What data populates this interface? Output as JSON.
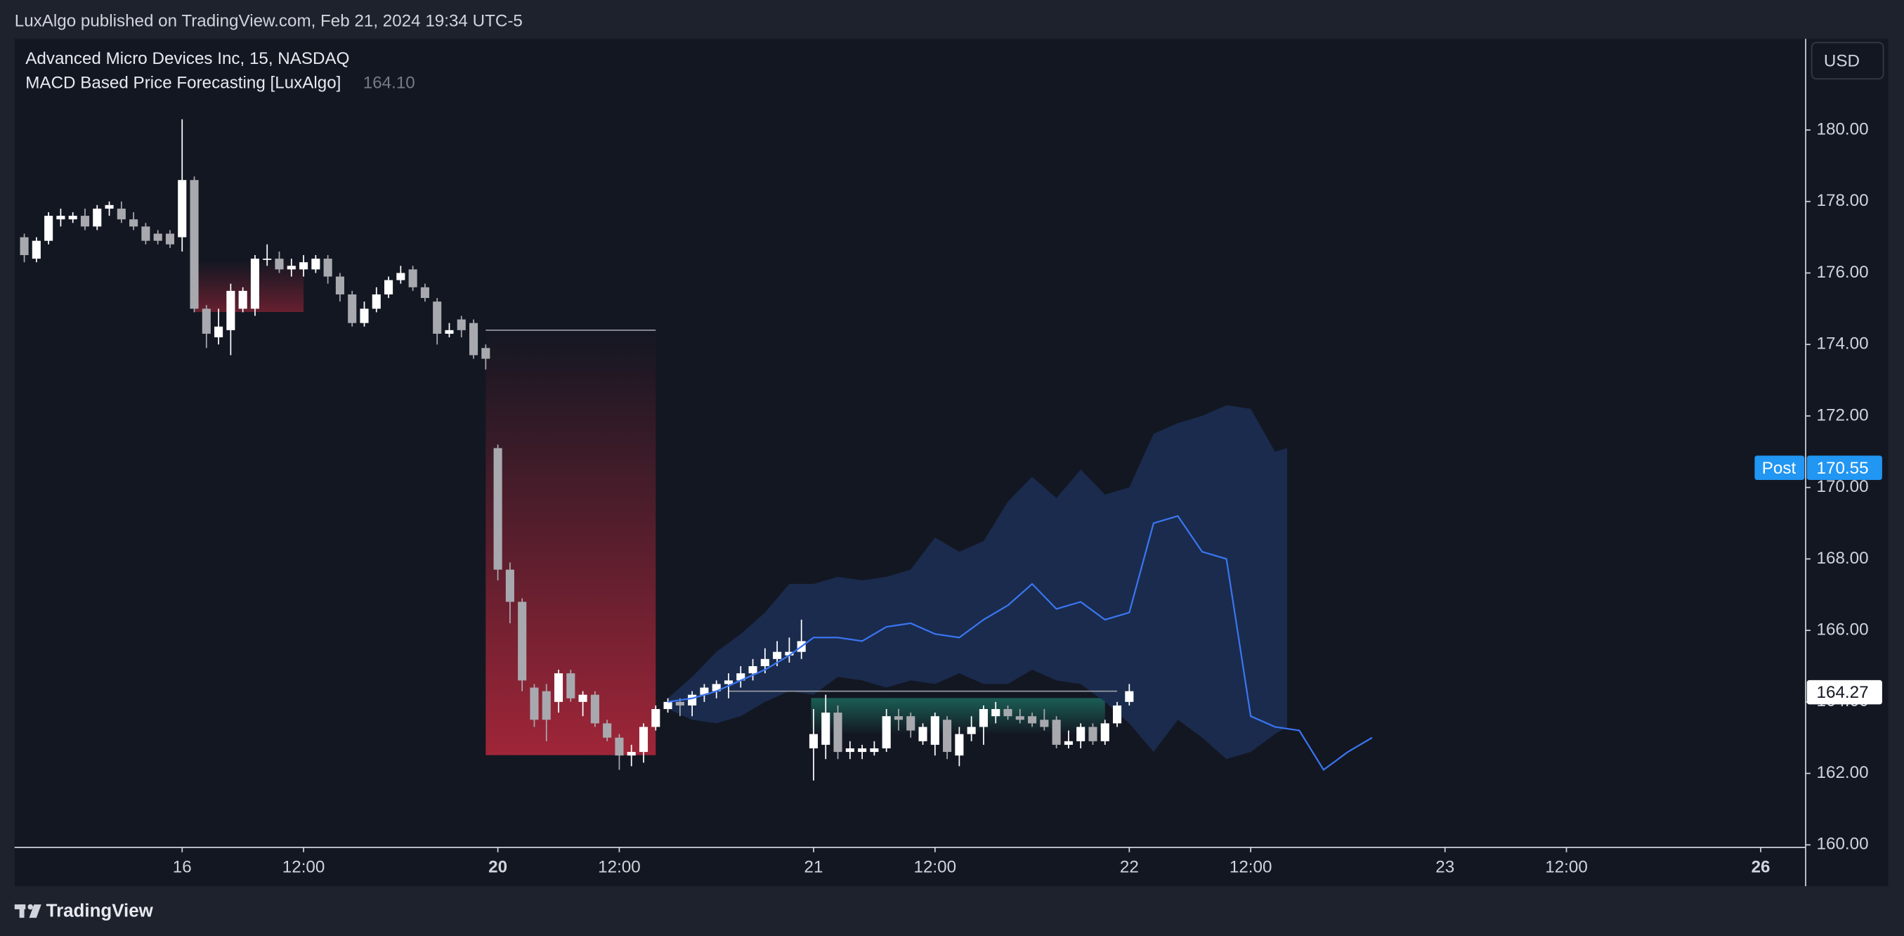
{
  "header": {
    "published": "LuxAlgo published on TradingView.com, Feb 21, 2024 19:34 UTC-5",
    "brand": "TradingView"
  },
  "chart_data": {
    "type": "candlestick",
    "title": "Advanced Micro Devices Inc, 15, NASDAQ",
    "indicator": "MACD Based Price Forecasting [LuxAlgo]",
    "indicator_value": "164.10",
    "currency": "USD",
    "open": [
      177.0,
      176.4,
      176.9,
      177.5,
      177.5,
      177.6,
      177.3,
      177.8,
      177.8,
      177.5,
      177.3,
      177.1,
      177.1,
      177.0,
      178.6,
      175.0,
      174.2,
      174.4,
      175.0,
      175.0,
      176.4,
      176.4,
      176.1,
      176.1,
      176.1,
      176.4,
      175.9,
      175.4,
      174.6,
      175.0,
      175.4,
      175.8,
      176.1,
      175.6,
      175.2,
      174.3,
      174.7,
      174.6,
      173.9,
      171.1,
      167.7,
      166.8,
      164.4,
      164.3,
      164.0,
      164.8,
      164.0,
      164.2,
      163.4,
      163.0,
      162.5,
      162.6,
      163.3,
      163.8,
      164.0,
      163.9,
      164.2,
      164.3,
      164.5,
      164.6,
      164.8,
      165.0,
      165.2,
      165.3,
      165.4,
      162.7,
      162.8,
      163.7,
      162.6,
      162.6,
      162.6,
      162.7,
      163.6,
      163.6,
      162.9,
      162.8,
      163.5,
      162.5,
      163.1,
      163.3,
      163.6,
      163.8,
      163.6,
      163.6,
      163.5,
      163.5,
      162.8,
      162.9,
      163.3,
      162.9,
      163.4,
      164.0
    ],
    "high": [
      177.1,
      177.0,
      177.7,
      177.8,
      177.7,
      177.8,
      177.9,
      178.0,
      178.0,
      177.7,
      177.4,
      177.2,
      177.2,
      180.3,
      178.7,
      175.1,
      175.0,
      175.7,
      175.6,
      176.5,
      176.8,
      176.6,
      176.4,
      176.5,
      176.5,
      176.5,
      176.0,
      175.5,
      175.2,
      175.6,
      175.9,
      176.2,
      176.2,
      175.7,
      175.3,
      174.6,
      174.8,
      174.7,
      174.0,
      171.2,
      167.9,
      166.9,
      164.5,
      164.5,
      164.9,
      164.9,
      164.3,
      164.3,
      163.5,
      163.1,
      162.8,
      163.4,
      163.9,
      164.1,
      164.1,
      164.3,
      164.5,
      164.6,
      164.8,
      165.0,
      165.2,
      165.5,
      165.7,
      165.8,
      166.3,
      163.8,
      164.2,
      163.9,
      162.9,
      162.8,
      162.9,
      163.8,
      163.8,
      163.7,
      163.4,
      163.7,
      163.6,
      163.3,
      163.6,
      163.9,
      164.0,
      163.9,
      163.8,
      163.7,
      163.8,
      163.6,
      163.2,
      163.4,
      163.4,
      163.5,
      164.0,
      164.5
    ],
    "low": [
      176.3,
      176.3,
      176.8,
      177.3,
      177.4,
      177.2,
      177.2,
      177.6,
      177.4,
      177.2,
      176.8,
      176.8,
      176.7,
      176.6,
      174.9,
      173.9,
      174.0,
      173.7,
      174.9,
      174.8,
      176.2,
      176.0,
      175.9,
      175.9,
      176.0,
      175.7,
      175.2,
      174.5,
      174.5,
      174.9,
      175.3,
      175.7,
      175.5,
      175.2,
      174.0,
      174.2,
      174.2,
      173.6,
      173.3,
      167.4,
      166.2,
      164.3,
      163.3,
      162.9,
      163.7,
      164.0,
      163.6,
      163.3,
      162.9,
      162.1,
      162.2,
      162.3,
      163.2,
      163.7,
      163.6,
      163.6,
      164.0,
      164.1,
      164.1,
      164.4,
      164.6,
      164.8,
      165.0,
      165.1,
      165.2,
      161.8,
      162.4,
      162.4,
      162.4,
      162.4,
      162.5,
      162.6,
      163.2,
      163.0,
      162.8,
      162.5,
      162.4,
      162.2,
      162.9,
      162.8,
      163.4,
      163.5,
      163.4,
      163.3,
      163.2,
      162.7,
      162.7,
      162.7,
      162.8,
      162.8,
      163.3,
      163.9
    ],
    "close": [
      176.5,
      176.9,
      177.6,
      177.6,
      177.6,
      177.3,
      177.8,
      177.9,
      177.5,
      177.3,
      176.9,
      176.9,
      176.8,
      178.6,
      175.0,
      174.3,
      174.5,
      175.5,
      175.5,
      176.4,
      176.4,
      176.1,
      176.2,
      176.3,
      176.4,
      175.9,
      175.4,
      174.6,
      175.0,
      175.4,
      175.8,
      176.0,
      175.6,
      175.3,
      174.3,
      174.4,
      174.4,
      173.7,
      173.6,
      167.7,
      166.8,
      164.6,
      163.5,
      163.5,
      164.8,
      164.1,
      164.2,
      163.4,
      163.0,
      162.5,
      162.6,
      163.3,
      163.8,
      164.0,
      163.9,
      164.2,
      164.4,
      164.5,
      164.6,
      164.8,
      165.0,
      165.2,
      165.4,
      165.4,
      165.7,
      163.1,
      163.7,
      162.6,
      162.7,
      162.7,
      162.7,
      163.6,
      163.5,
      163.2,
      163.3,
      163.6,
      162.6,
      163.1,
      163.3,
      163.8,
      163.8,
      163.6,
      163.5,
      163.4,
      163.3,
      162.8,
      162.9,
      163.3,
      162.9,
      163.4,
      163.9,
      164.3
    ],
    "up_color": "#ffffff",
    "down_color": "#a8a9ae",
    "forecast": {
      "color": "#3a75f0",
      "x": [
        54,
        56,
        58,
        60,
        62,
        64,
        66,
        68,
        70,
        72,
        74,
        76,
        78,
        80,
        82,
        84,
        86,
        88,
        90,
        92,
        94,
        96,
        98,
        100,
        102,
        104,
        106,
        108,
        110,
        112
      ],
      "values": [
        164.0,
        164.1,
        164.3,
        164.6,
        164.9,
        165.3,
        165.8,
        165.8,
        165.7,
        166.1,
        166.2,
        165.9,
        165.8,
        166.3,
        166.7,
        167.3,
        166.6,
        166.8,
        166.3,
        166.5,
        169.0,
        169.2,
        168.2,
        168.0,
        163.6,
        163.3,
        163.2,
        162.1,
        162.6,
        163.0
      ]
    },
    "band": {
      "color": "#1c2e52",
      "x": [
        54,
        56,
        58,
        60,
        62,
        64,
        66,
        68,
        70,
        72,
        74,
        76,
        78,
        80,
        82,
        84,
        86,
        88,
        90,
        92,
        94,
        96,
        98,
        100,
        102,
        104,
        105
      ],
      "upper": [
        164.1,
        164.7,
        165.4,
        165.9,
        166.5,
        167.3,
        167.3,
        167.5,
        167.4,
        167.5,
        167.7,
        168.6,
        168.2,
        168.5,
        169.6,
        170.3,
        169.7,
        170.5,
        169.8,
        170.0,
        171.5,
        171.8,
        172.0,
        172.3,
        172.2,
        171.0,
        171.1
      ],
      "lower": [
        163.8,
        163.5,
        163.4,
        163.6,
        164.0,
        164.3,
        164.2,
        164.7,
        164.6,
        164.4,
        164.6,
        164.5,
        164.8,
        164.5,
        164.5,
        164.9,
        164.6,
        164.5,
        164.0,
        163.4,
        162.6,
        163.5,
        163.0,
        162.4,
        162.6,
        163.1,
        163.3
      ]
    },
    "levels": [
      {
        "value": 174.4,
        "x": [
          39,
          53
        ]
      },
      {
        "value": 164.3,
        "x": [
          59,
          91
        ]
      }
    ],
    "price_labels": [
      {
        "tag": "Post",
        "value": 170.55,
        "color": "#2196f3"
      },
      {
        "value": 164.27,
        "color": "#ffffff"
      }
    ],
    "xlim": [
      0.2,
      147.7
    ],
    "xticks": [
      {
        "value": 14,
        "label": "16"
      },
      {
        "value": 24,
        "label": "12:00"
      },
      {
        "value": 40,
        "label": "20",
        "weight": "bold"
      },
      {
        "value": 50,
        "label": "12:00"
      },
      {
        "value": 66,
        "label": "21"
      },
      {
        "value": 76,
        "label": "12:00"
      },
      {
        "value": 92,
        "label": "22"
      },
      {
        "value": 102,
        "label": "12:00"
      },
      {
        "value": 118,
        "label": "23"
      },
      {
        "value": 128,
        "label": "12:00"
      },
      {
        "value": 144,
        "label": "26",
        "weight": "bold"
      }
    ],
    "ylim": [
      159.93,
      182.55
    ],
    "yticks": [
      {
        "value": 160,
        "label": "160.00"
      },
      {
        "value": 162,
        "label": "162.00"
      },
      {
        "value": 164,
        "label": "164.00"
      },
      {
        "value": 166,
        "label": "166.00"
      },
      {
        "value": 168,
        "label": "168.00"
      },
      {
        "value": 170,
        "label": "170.00"
      },
      {
        "value": 172,
        "label": "172.00"
      },
      {
        "value": 174,
        "label": "174.00"
      },
      {
        "value": 176,
        "label": "176.00"
      },
      {
        "value": 178,
        "label": "178.00"
      },
      {
        "value": 180,
        "label": "180.00"
      }
    ]
  }
}
